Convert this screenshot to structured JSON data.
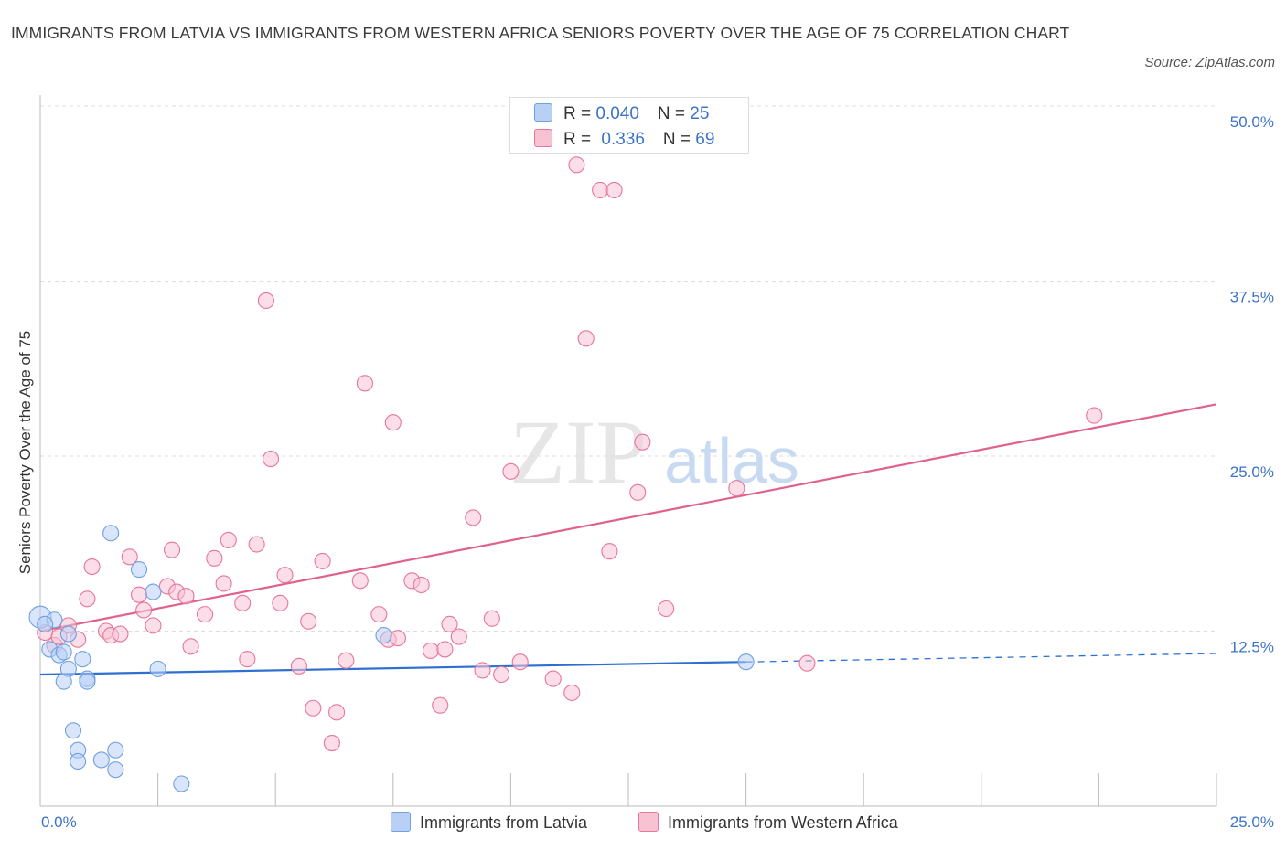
{
  "title": "IMMIGRANTS FROM LATVIA VS IMMIGRANTS FROM WESTERN AFRICA SENIORS POVERTY OVER THE AGE OF 75 CORRELATION CHART",
  "source": "Source: ZipAtlas.com",
  "watermark": {
    "zip": "ZIP",
    "atlas": "atlas"
  },
  "legend": {
    "latvia": {
      "r_label": "R = ",
      "r_value": "0.040",
      "n_label": "N = ",
      "n_value": "25"
    },
    "wafrica": {
      "r_label": "R = ",
      "r_value": "0.336",
      "n_label": "N = ",
      "n_value": "69"
    }
  },
  "chart_data": {
    "type": "scatter",
    "xlabel": "",
    "ylabel": "Seniors Poverty Over the Age of 75",
    "xlim": [
      0,
      25
    ],
    "ylim": [
      0,
      50
    ],
    "x_tick_labels": [
      "0.0%",
      "25.0%"
    ],
    "y_ticks": [
      12.5,
      25,
      37.5,
      50
    ],
    "y_tick_labels": [
      "12.5%",
      "25.0%",
      "37.5%",
      "50.0%"
    ],
    "grid": true,
    "series": [
      {
        "name": "Immigrants from Latvia",
        "color": "#6fa0e0",
        "fill": "#b8d0f5",
        "trend": {
          "x": [
            0,
            15
          ],
          "y": [
            9.4,
            10.3
          ],
          "dashed_to": [
            25,
            10.9
          ]
        },
        "points": [
          [
            0.0,
            13.5
          ],
          [
            0.3,
            13.3
          ],
          [
            0.2,
            11.2
          ],
          [
            0.4,
            10.8
          ],
          [
            0.5,
            11.0
          ],
          [
            0.6,
            12.3
          ],
          [
            0.6,
            9.8
          ],
          [
            0.9,
            10.5
          ],
          [
            1.0,
            9.1
          ],
          [
            1.0,
            8.9
          ],
          [
            0.5,
            8.9
          ],
          [
            0.7,
            5.4
          ],
          [
            0.8,
            4.0
          ],
          [
            0.8,
            3.2
          ],
          [
            1.3,
            3.3
          ],
          [
            1.6,
            4.0
          ],
          [
            1.6,
            2.6
          ],
          [
            3.0,
            1.6
          ],
          [
            1.5,
            19.5
          ],
          [
            2.1,
            16.9
          ],
          [
            2.4,
            15.3
          ],
          [
            2.5,
            9.8
          ],
          [
            7.3,
            12.2
          ],
          [
            15.0,
            10.3
          ],
          [
            0.1,
            13.0
          ]
        ]
      },
      {
        "name": "Immigrants from Western Africa",
        "color": "#e8759a",
        "fill": "#f7c3d3",
        "trend": {
          "x": [
            0,
            25
          ],
          "y": [
            12.5,
            28.7
          ]
        },
        "points": [
          [
            0.1,
            12.4
          ],
          [
            0.3,
            11.5
          ],
          [
            0.6,
            12.9
          ],
          [
            0.4,
            12.1
          ],
          [
            0.8,
            11.9
          ],
          [
            1.0,
            14.8
          ],
          [
            1.1,
            17.1
          ],
          [
            1.4,
            12.5
          ],
          [
            1.5,
            12.2
          ],
          [
            1.7,
            12.3
          ],
          [
            1.9,
            17.8
          ],
          [
            2.1,
            15.1
          ],
          [
            2.2,
            14.0
          ],
          [
            2.4,
            12.9
          ],
          [
            2.7,
            15.7
          ],
          [
            2.8,
            18.3
          ],
          [
            2.9,
            15.3
          ],
          [
            3.1,
            15.0
          ],
          [
            3.2,
            11.4
          ],
          [
            3.5,
            13.7
          ],
          [
            3.7,
            17.7
          ],
          [
            3.9,
            15.9
          ],
          [
            4.0,
            19.0
          ],
          [
            4.3,
            14.5
          ],
          [
            4.4,
            10.5
          ],
          [
            4.6,
            18.7
          ],
          [
            4.8,
            36.1
          ],
          [
            4.9,
            24.8
          ],
          [
            5.1,
            14.5
          ],
          [
            5.2,
            16.5
          ],
          [
            5.5,
            10.0
          ],
          [
            5.7,
            13.2
          ],
          [
            5.8,
            7.0
          ],
          [
            6.0,
            17.5
          ],
          [
            6.2,
            4.5
          ],
          [
            6.3,
            6.7
          ],
          [
            6.5,
            10.4
          ],
          [
            6.8,
            16.1
          ],
          [
            6.9,
            30.2
          ],
          [
            7.2,
            13.7
          ],
          [
            7.5,
            27.4
          ],
          [
            7.4,
            11.9
          ],
          [
            7.6,
            12.0
          ],
          [
            7.9,
            16.1
          ],
          [
            8.1,
            15.8
          ],
          [
            8.3,
            11.1
          ],
          [
            8.5,
            7.2
          ],
          [
            8.6,
            11.2
          ],
          [
            8.7,
            13.0
          ],
          [
            8.9,
            12.1
          ],
          [
            9.2,
            20.6
          ],
          [
            9.4,
            9.7
          ],
          [
            9.6,
            13.4
          ],
          [
            9.8,
            9.4
          ],
          [
            10.0,
            23.9
          ],
          [
            10.2,
            10.3
          ],
          [
            10.9,
            9.1
          ],
          [
            11.3,
            8.1
          ],
          [
            11.4,
            45.8
          ],
          [
            11.6,
            33.4
          ],
          [
            11.9,
            44.0
          ],
          [
            12.2,
            44.0
          ],
          [
            12.1,
            18.2
          ],
          [
            12.7,
            22.4
          ],
          [
            12.8,
            26.0
          ],
          [
            13.3,
            14.1
          ],
          [
            14.8,
            22.7
          ],
          [
            16.3,
            10.2
          ],
          [
            22.4,
            27.9
          ]
        ]
      }
    ]
  }
}
